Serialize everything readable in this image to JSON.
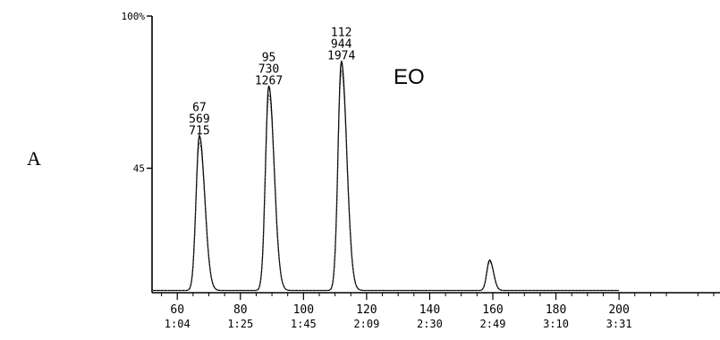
{
  "panel_label": "A",
  "sample_label": "EO",
  "chart_data": {
    "type": "line",
    "title": "",
    "xlabel": "",
    "ylabel": "",
    "y_ticks": [
      "100%",
      "45"
    ],
    "x_ticks": [
      "60",
      "80",
      "100",
      "120",
      "140",
      "160",
      "180",
      "200"
    ],
    "time_ticks": [
      "1:04",
      "1:25",
      "1:45",
      "2:09",
      "2:30",
      "2:49",
      "3:10",
      "3:31"
    ],
    "xlim": [
      52,
      232
    ],
    "ylim": [
      0,
      100
    ],
    "peaks": [
      {
        "scan": 67,
        "area": 569,
        "height": 715,
        "x": 67,
        "y": 56
      },
      {
        "scan": 95,
        "area": 730,
        "height": 1267,
        "x": 89,
        "y": 74
      },
      {
        "scan": 112,
        "area": 944,
        "height": 1974,
        "x": 112,
        "y": 83
      },
      {
        "scan": 160,
        "area": null,
        "height": null,
        "x": 159,
        "y": 11
      }
    ],
    "grid": false,
    "legend": "none"
  }
}
